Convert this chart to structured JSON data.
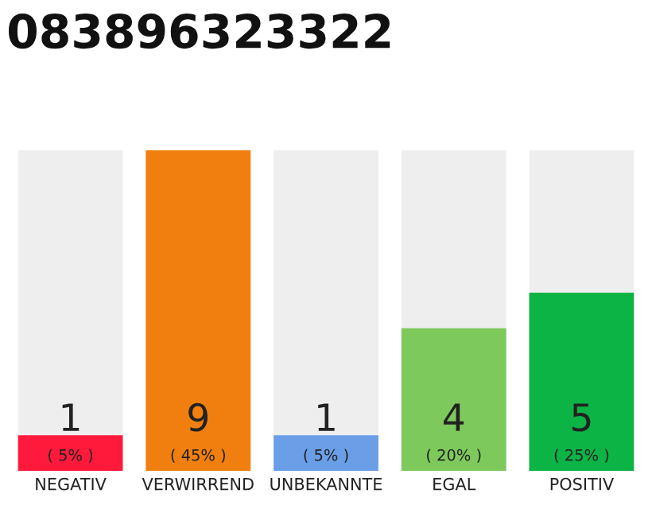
{
  "chart_data": {
    "type": "bar",
    "title": "083896323322",
    "categories": [
      "NEGATIV",
      "VERWIRREND",
      "UNBEKANNTE",
      "EGAL",
      "POSITIV"
    ],
    "values": [
      5,
      45,
      5,
      20,
      25
    ],
    "annotations": [
      "1",
      "9",
      "1",
      "4",
      "5"
    ],
    "colors": [
      "#ff1a3c",
      "#f07f0f",
      "#6a9fe8",
      "#7ec95c",
      "#0cb446"
    ],
    "value_labels": [
      "( 5% )",
      "( 45% )",
      "( 5% )",
      "( 20% )",
      "( 25% )"
    ],
    "grid": false,
    "legend": false
  }
}
